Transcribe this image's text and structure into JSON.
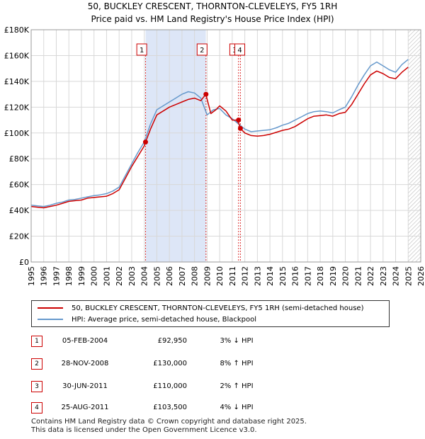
{
  "title_line1": "50, BUCKLEY CRESCENT, THORNTON-CLEVELEYS, FY5 1RH",
  "title_line2": "Price paid vs. HM Land Registry's House Price Index (HPI)",
  "chart_data": {
    "type": "line",
    "xlim": [
      1995,
      2026
    ],
    "ylim": [
      0,
      180000
    ],
    "yticks": [
      0,
      20000,
      40000,
      60000,
      80000,
      100000,
      120000,
      140000,
      160000,
      180000
    ],
    "ytick_labels": [
      "£0",
      "£20K",
      "£40K",
      "£60K",
      "£80K",
      "£100K",
      "£120K",
      "£140K",
      "£160K",
      "£180K"
    ],
    "xticks": [
      1995,
      1996,
      1997,
      1998,
      1999,
      2000,
      2001,
      2002,
      2003,
      2004,
      2005,
      2006,
      2007,
      2008,
      2009,
      2010,
      2011,
      2012,
      2013,
      2014,
      2015,
      2016,
      2017,
      2018,
      2019,
      2020,
      2021,
      2022,
      2023,
      2024,
      2025,
      2026
    ],
    "xtick_labels": [
      "1995",
      "1996",
      "1997",
      "1998",
      "1999",
      "2000",
      "2001",
      "2002",
      "2003",
      "2004",
      "2005",
      "2006",
      "2007",
      "2008",
      "2009",
      "2010",
      "2011",
      "2012",
      "2013",
      "2014",
      "2015",
      "2016",
      "2017",
      "2018",
      "2019",
      "2020",
      "2021",
      "2022",
      "2023",
      "2024",
      "2025",
      "2026"
    ],
    "shaded_span": [
      2004.1,
      2008.9
    ],
    "future_hatch_from": 2025.0,
    "series": [
      {
        "name": "50, BUCKLEY CRESCENT, THORNTON-CLEVELEYS, FY5 1RH (semi-detached house)",
        "color": "#cc0000",
        "x": [
          1995.0,
          1995.5,
          1996.0,
          1996.5,
          1997.0,
          1997.5,
          1998.0,
          1998.5,
          1999.0,
          1999.5,
          2000.0,
          2000.5,
          2001.0,
          2001.5,
          2002.0,
          2002.5,
          2003.0,
          2003.5,
          2004.0,
          2004.1,
          2004.5,
          2005.0,
          2005.5,
          2006.0,
          2006.5,
          2007.0,
          2007.5,
          2008.0,
          2008.5,
          2008.9,
          2009.3,
          2009.7,
          2010.0,
          2010.5,
          2011.0,
          2011.3,
          2011.5,
          2011.65,
          2012.0,
          2012.5,
          2013.0,
          2013.5,
          2014.0,
          2014.5,
          2015.0,
          2015.5,
          2016.0,
          2016.5,
          2017.0,
          2017.5,
          2018.0,
          2018.5,
          2019.0,
          2019.5,
          2020.0,
          2020.5,
          2021.0,
          2021.5,
          2022.0,
          2022.5,
          2023.0,
          2023.5,
          2024.0,
          2024.5,
          2025.0
        ],
        "y": [
          43000,
          42500,
          42000,
          43000,
          44000,
          45500,
          47000,
          47500,
          48000,
          49500,
          50000,
          50500,
          51000,
          53000,
          56000,
          65000,
          74000,
          82000,
          90000,
          92950,
          103000,
          114000,
          117000,
          120000,
          122000,
          124000,
          126000,
          127000,
          125000,
          130000,
          115000,
          118000,
          121000,
          117000,
          110000,
          110000,
          108000,
          103500,
          100000,
          98000,
          97500,
          98000,
          99000,
          100500,
          102000,
          103000,
          105000,
          108000,
          111000,
          113000,
          113500,
          114000,
          113000,
          115000,
          116000,
          122000,
          130000,
          138000,
          145000,
          148000,
          146000,
          143000,
          142000,
          147000,
          151000
        ]
      },
      {
        "name": "HPI: Average price, semi-detached house, Blackpool",
        "color": "#6699cc",
        "x": [
          1995.0,
          1995.5,
          1996.0,
          1996.5,
          1997.0,
          1997.5,
          1998.0,
          1998.5,
          1999.0,
          1999.5,
          2000.0,
          2000.5,
          2001.0,
          2001.5,
          2002.0,
          2002.5,
          2003.0,
          2003.5,
          2004.0,
          2004.5,
          2005.0,
          2005.5,
          2006.0,
          2006.5,
          2007.0,
          2007.5,
          2008.0,
          2008.5,
          2009.0,
          2009.5,
          2010.0,
          2010.5,
          2011.0,
          2011.5,
          2012.0,
          2012.5,
          2013.0,
          2013.5,
          2014.0,
          2014.5,
          2015.0,
          2015.5,
          2016.0,
          2016.5,
          2017.0,
          2017.5,
          2018.0,
          2018.5,
          2019.0,
          2019.5,
          2020.0,
          2020.5,
          2021.0,
          2021.5,
          2022.0,
          2022.5,
          2023.0,
          2023.5,
          2024.0,
          2024.5,
          2025.0
        ],
        "y": [
          44000,
          43500,
          43000,
          44000,
          45500,
          46500,
          48000,
          48500,
          49500,
          50500,
          51500,
          52000,
          53000,
          55000,
          58000,
          67000,
          76000,
          85000,
          93000,
          107000,
          118000,
          121000,
          124000,
          127000,
          130000,
          132000,
          131000,
          127000,
          114000,
          118000,
          119000,
          114000,
          111000,
          107000,
          103000,
          101000,
          101500,
          102000,
          102500,
          104000,
          106000,
          107500,
          110000,
          112500,
          115000,
          116500,
          117000,
          116500,
          115500,
          118000,
          120000,
          128000,
          137000,
          145000,
          152000,
          155000,
          152000,
          149000,
          147000,
          153000,
          157000
        ]
      }
    ],
    "sales": [
      {
        "num": "1",
        "date": "05-FEB-2004",
        "price": "£92,950",
        "hpi": "3% ↓ HPI",
        "x": 2004.1,
        "y": 92950,
        "label_x": 2003.8
      },
      {
        "num": "2",
        "date": "28-NOV-2008",
        "price": "£130,000",
        "hpi": "8% ↑ HPI",
        "x": 2008.91,
        "y": 130000,
        "label_x": 2008.6
      },
      {
        "num": "3",
        "date": "30-JUN-2011",
        "price": "£110,000",
        "hpi": "2% ↑ HPI",
        "x": 2011.5,
        "y": 110000,
        "label_x": 2011.2
      },
      {
        "num": "4",
        "date": "25-AUG-2011",
        "price": "£103,500",
        "hpi": "4% ↓ HPI",
        "x": 2011.65,
        "y": 103500,
        "label_x": 2011.6
      }
    ]
  },
  "legend": {
    "property_label": "50, BUCKLEY CRESCENT, THORNTON-CLEVELEYS, FY5 1RH (semi-detached house)",
    "hpi_label": "HPI: Average price, semi-detached house, Blackpool"
  },
  "colors": {
    "property": "#cc0000",
    "hpi": "#6699cc",
    "shade": "#dde6f7"
  },
  "footer": {
    "line1": "Contains HM Land Registry data © Crown copyright and database right 2025.",
    "line2": "This data is licensed under the Open Government Licence v3.0."
  }
}
